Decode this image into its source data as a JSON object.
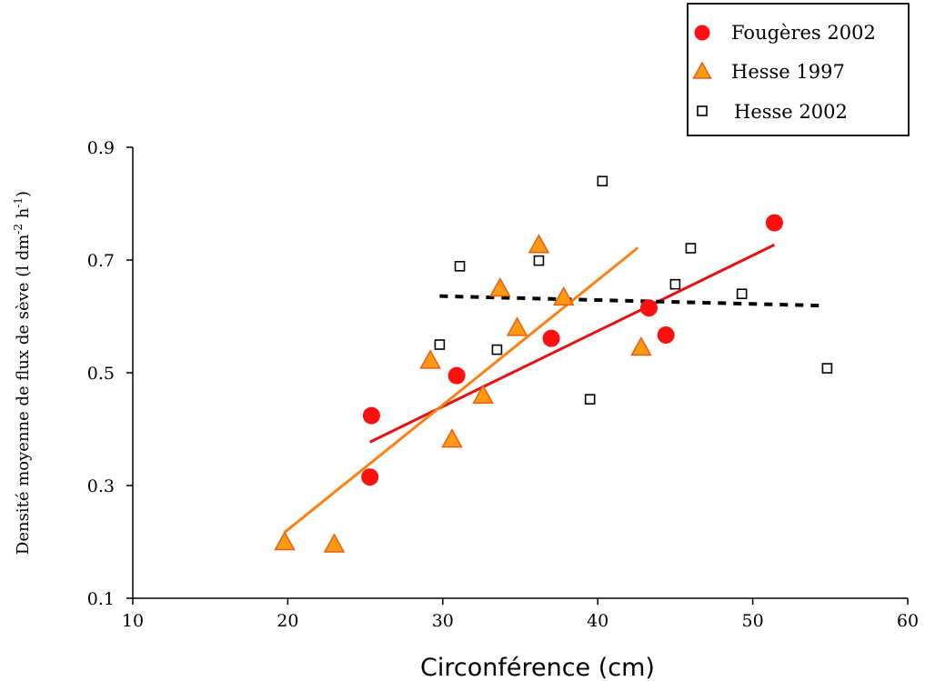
{
  "chart_data": {
    "type": "scatter",
    "xlabel": "Circonférence (cm)",
    "ylabel": {
      "text": "Densité moyenne de flux de sève (l dm",
      "sup1": "-2",
      "mid": " h",
      "sup2": "-1",
      "end": ")"
    },
    "xlim": [
      10,
      60
    ],
    "ylim": [
      0.1,
      0.9
    ],
    "x_ticks": [
      "10",
      "20",
      "30",
      "40",
      "50",
      "60"
    ],
    "y_ticks": [
      "0.1",
      "0.3",
      "0.5",
      "0.7",
      "0.9"
    ],
    "grid": false,
    "legend_position": "top-right",
    "series": [
      {
        "name": "Fougères 2002",
        "marker": "circle",
        "color": "#ff1010",
        "points": [
          [
            25.4,
            0.424
          ],
          [
            25.3,
            0.315
          ],
          [
            30.9,
            0.495
          ],
          [
            37.0,
            0.561
          ],
          [
            43.3,
            0.615
          ],
          [
            44.4,
            0.567
          ],
          [
            51.4,
            0.766
          ]
        ],
        "trend": {
          "style": "solid",
          "color": "#e81010",
          "from": [
            25.3,
            0.377
          ],
          "to": [
            51.4,
            0.727
          ]
        }
      },
      {
        "name": "Hesse 1997",
        "marker": "triangle",
        "color": "#ff9a10",
        "stroke": "#e0601a",
        "points": [
          [
            19.8,
            0.198
          ],
          [
            23.0,
            0.194
          ],
          [
            29.2,
            0.52
          ],
          [
            30.6,
            0.38
          ],
          [
            32.6,
            0.458
          ],
          [
            33.7,
            0.648
          ],
          [
            34.8,
            0.578
          ],
          [
            36.2,
            0.725
          ],
          [
            37.8,
            0.632
          ],
          [
            42.8,
            0.543
          ]
        ],
        "trend": {
          "style": "solid",
          "color": "#ff8010",
          "from": [
            19.8,
            0.217
          ],
          "to": [
            42.6,
            0.722
          ]
        }
      },
      {
        "name": "Hesse 2002",
        "marker": "square",
        "color": "#ffffff",
        "stroke": "#000000",
        "points": [
          [
            29.8,
            0.55
          ],
          [
            31.1,
            0.689
          ],
          [
            33.5,
            0.541
          ],
          [
            36.2,
            0.699
          ],
          [
            39.5,
            0.453
          ],
          [
            40.3,
            0.84
          ],
          [
            45.0,
            0.657
          ],
          [
            46.0,
            0.721
          ],
          [
            49.3,
            0.64
          ],
          [
            54.8,
            0.508
          ]
        ],
        "trend": {
          "style": "dashed",
          "color": "#000000",
          "from": [
            29.8,
            0.636
          ],
          "to": [
            54.6,
            0.619
          ]
        }
      }
    ]
  }
}
